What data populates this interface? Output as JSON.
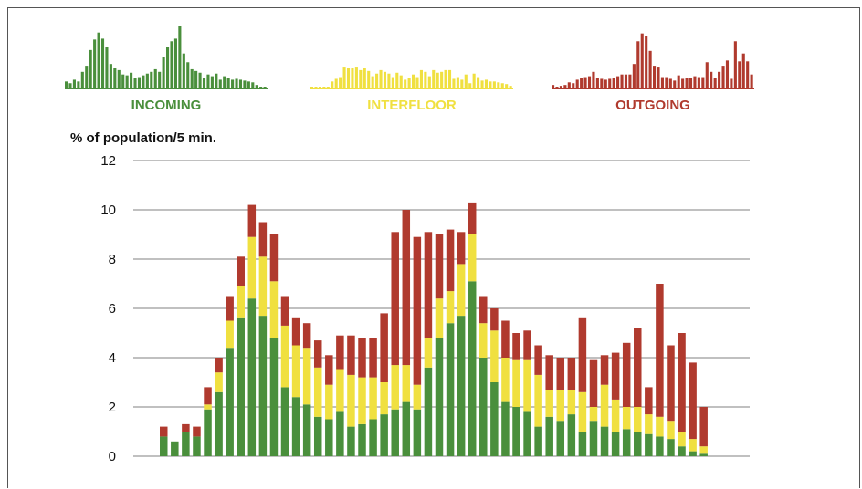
{
  "chart_data": {
    "type": "bar",
    "stacked": true,
    "ylabel": "% of population/5 min.",
    "ylim": [
      0,
      12
    ],
    "yticks": [
      0,
      2,
      4,
      6,
      8,
      10,
      12
    ],
    "grid": true,
    "legend_position": "top",
    "series": [
      {
        "name": "INCOMING",
        "color": "#4a8f3c",
        "values": [
          0.8,
          0.6,
          1.0,
          0.8,
          1.9,
          2.6,
          4.4,
          5.6,
          6.4,
          5.7,
          4.8,
          2.8,
          2.4,
          2.1,
          1.6,
          1.5,
          1.8,
          1.2,
          1.3,
          1.5,
          1.7,
          1.9,
          2.2,
          1.9,
          3.6,
          4.8,
          5.4,
          5.7,
          7.1,
          4.0,
          3.0,
          2.2,
          2.0,
          1.8,
          1.2,
          1.6,
          1.4,
          1.7,
          1.0,
          1.4,
          1.2,
          1.0,
          1.1,
          1.0,
          0.9,
          0.8,
          0.7,
          0.4,
          0.2,
          0.1
        ]
      },
      {
        "name": "INTERFLOOR",
        "color": "#f0e040",
        "values": [
          0.0,
          0.0,
          0.0,
          0.0,
          0.2,
          0.8,
          1.1,
          1.3,
          2.5,
          2.4,
          2.3,
          2.5,
          2.1,
          2.3,
          2.0,
          1.4,
          1.7,
          2.1,
          1.9,
          1.7,
          1.3,
          1.8,
          1.5,
          1.0,
          1.2,
          1.6,
          1.3,
          2.1,
          1.9,
          1.4,
          2.1,
          1.8,
          1.9,
          2.1,
          2.1,
          1.1,
          1.3,
          1.0,
          1.6,
          0.6,
          1.7,
          1.3,
          0.9,
          1.0,
          0.8,
          0.8,
          0.7,
          0.6,
          0.5,
          0.3
        ]
      },
      {
        "name": "OUTGOING",
        "color": "#b03a2e",
        "values": [
          0.4,
          0.0,
          0.3,
          0.4,
          0.7,
          0.6,
          1.0,
          1.2,
          1.3,
          1.4,
          1.9,
          1.2,
          1.1,
          1.0,
          1.1,
          1.2,
          1.4,
          1.6,
          1.6,
          1.6,
          2.8,
          5.4,
          6.3,
          6.0,
          4.3,
          2.6,
          2.5,
          1.3,
          1.3,
          1.1,
          0.9,
          1.5,
          1.1,
          1.2,
          1.2,
          1.4,
          1.3,
          1.3,
          3.0,
          1.9,
          1.2,
          1.9,
          2.6,
          3.2,
          1.1,
          5.4,
          3.1,
          4.0,
          3.1,
          1.6
        ]
      }
    ]
  }
}
